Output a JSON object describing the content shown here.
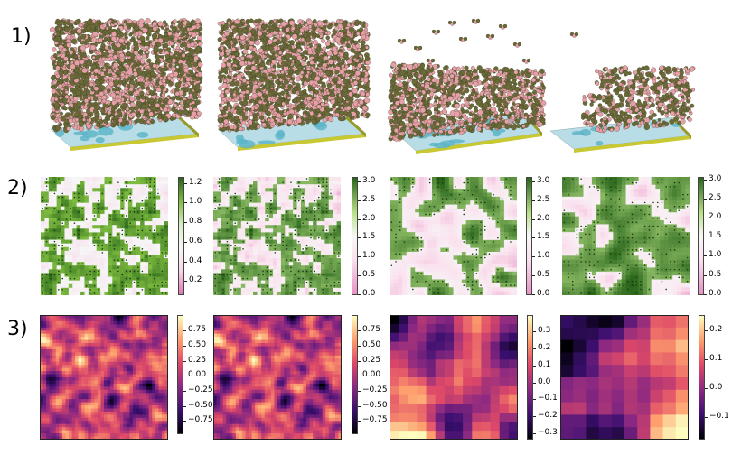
{
  "rows": [
    {
      "label": "1)"
    },
    {
      "label": "2)"
    },
    {
      "label": "3)"
    }
  ],
  "row2_colorbars": [
    {
      "ticks": [
        "1.2",
        "1.0",
        "0.8",
        "0.6",
        "0.4",
        "0.2"
      ]
    },
    {
      "ticks": [
        "3.0",
        "2.5",
        "2.0",
        "1.5",
        "1.0",
        "0.5",
        "0.0"
      ]
    },
    {
      "ticks": [
        "3.0",
        "2.5",
        "2.0",
        "1.5",
        "1.0",
        "0.5",
        "0.0"
      ]
    },
    {
      "ticks": [
        "3.0",
        "2.5",
        "2.0",
        "1.5",
        "1.0",
        "0.5",
        "0.0"
      ]
    }
  ],
  "row3_colorbars": [
    {
      "ticks": [
        "0.75",
        "0.50",
        "0.25",
        "0.00",
        "−0.25",
        "−0.50",
        "−0.75"
      ]
    },
    {
      "ticks": [
        "0.75",
        "0.50",
        "0.25",
        "0.00",
        "−0.25",
        "−0.50",
        "−0.75"
      ]
    },
    {
      "ticks": [
        "0.3",
        "0.2",
        "0.1",
        "0.0",
        "−0.1",
        "−0.2",
        "−0.3"
      ]
    },
    {
      "ticks": [
        "0.2",
        "0.1",
        "0.0",
        "−0.1"
      ]
    }
  ],
  "colors": {
    "molecule_green": "#6b6b3a",
    "molecule_pink": "#e8a0a8",
    "substrate_yellow": "#c8c832",
    "substrate_cyan": "#5ab4c8",
    "piyg_green": "#3a7d1e",
    "piyg_pink": "#e58fc3",
    "magma_dark": "#000004",
    "magma_light": "#fcfdbf"
  }
}
